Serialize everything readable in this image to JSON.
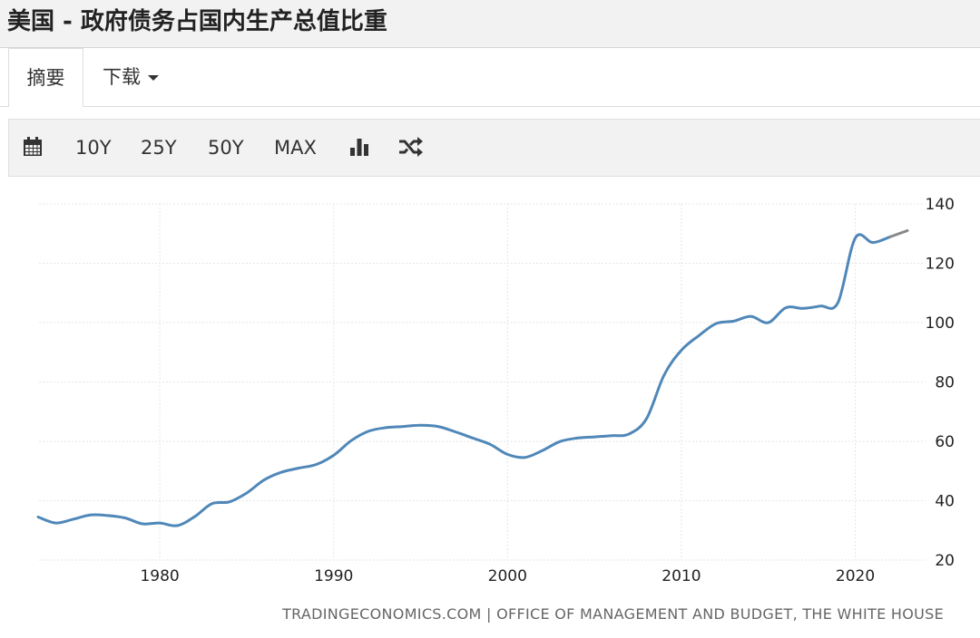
{
  "header": {
    "title": "美国 - 政府债务占国内生产总值比重"
  },
  "tabs": [
    {
      "label": "摘要"
    },
    {
      "label": "下载"
    }
  ],
  "toolbar": {
    "calendar_icon": "calendar-icon",
    "ranges": [
      "10Y",
      "25Y",
      "50Y",
      "MAX"
    ],
    "bar_chart_icon": "bar-chart-icon",
    "random_icon": "shuffle-icon"
  },
  "colors": {
    "series": "#4f87b8",
    "forecast": "#888888",
    "grid": "#e6e6e6"
  },
  "source": "TRADINGECONOMICS.COM | OFFICE OF MANAGEMENT AND BUDGET, THE WHITE HOUSE",
  "chart_data": {
    "type": "line",
    "title": "",
    "xlabel": "",
    "ylabel": "",
    "xlim": [
      1973,
      2023
    ],
    "ylim": [
      20,
      140
    ],
    "x_ticks": [
      1980,
      1990,
      2000,
      2010,
      2020
    ],
    "y_ticks": [
      20,
      40,
      60,
      80,
      100,
      120,
      140
    ],
    "y_axis_position": "right",
    "grid": true,
    "series": [
      {
        "x": [
          1973,
          1974,
          1975,
          1976,
          1977,
          1978,
          1979,
          1980,
          1981,
          1982,
          1983,
          1984,
          1985,
          1986,
          1987,
          1988,
          1989,
          1990,
          1991,
          1992,
          1993,
          1994,
          1995,
          1996,
          1997,
          1998,
          1999,
          2000,
          2001,
          2002,
          2003,
          2004,
          2005,
          2006,
          2007,
          2008,
          2009,
          2010,
          2011,
          2012,
          2013,
          2014,
          2015,
          2016,
          2017,
          2018,
          2019,
          2020,
          2021,
          2022
        ],
        "y": [
          34.5,
          32.5,
          33.7,
          35.2,
          35,
          34.2,
          32.2,
          32.5,
          31.6,
          34.6,
          39,
          39.6,
          42.6,
          47,
          49.6,
          51,
          52.2,
          55.3,
          60.2,
          63.4,
          64.6,
          65,
          65.4,
          65,
          63.2,
          61.1,
          59,
          55.6,
          54.6,
          56.9,
          59.9,
          61.1,
          61.5,
          61.9,
          62.5,
          67.7,
          82.3,
          90.7,
          95.6,
          99.7,
          100.5,
          102.1,
          100,
          105,
          104.8,
          105.6,
          106.7,
          128.5,
          127,
          128.9
        ]
      },
      {
        "x": [
          2022,
          2023
        ],
        "y": [
          128.9,
          131
        ]
      }
    ]
  }
}
